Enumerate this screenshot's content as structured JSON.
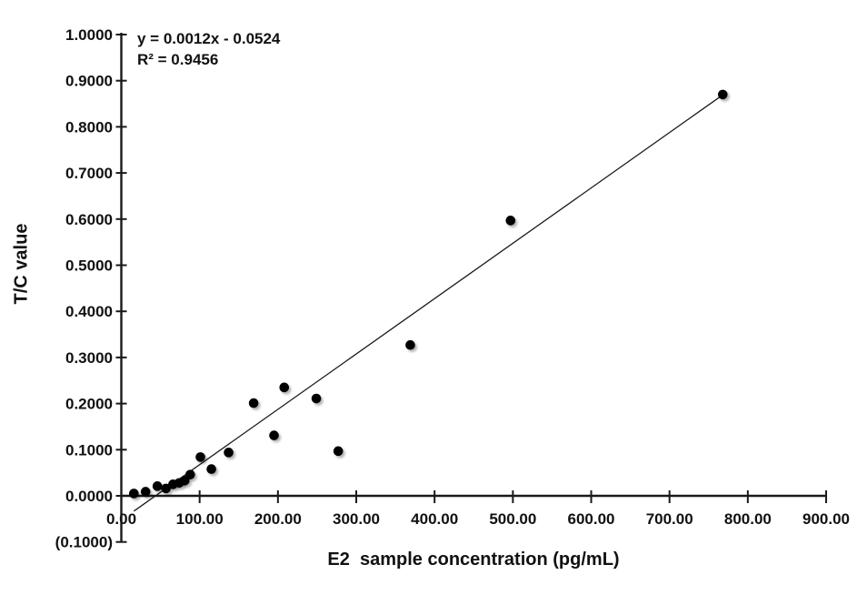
{
  "chart_data": {
    "type": "scatter",
    "title": "",
    "xlabel": "E2  sample concentration (pg/mL)",
    "ylabel": "T/C value",
    "legend": "none",
    "grid": false,
    "xlim": [
      0,
      900
    ],
    "ylim": [
      -0.1,
      1.0
    ],
    "x_axis": {
      "ticks": [
        {
          "v": 0,
          "label": "0.00"
        },
        {
          "v": 100,
          "label": "100.00"
        },
        {
          "v": 200,
          "label": "200.00"
        },
        {
          "v": 300,
          "label": "300.00"
        },
        {
          "v": 400,
          "label": "400.00"
        },
        {
          "v": 500,
          "label": "500.00"
        },
        {
          "v": 600,
          "label": "600.00"
        },
        {
          "v": 700,
          "label": "700.00"
        },
        {
          "v": 800,
          "label": "800.00"
        },
        {
          "v": 900,
          "label": "900.00"
        }
      ]
    },
    "y_axis": {
      "ticks": [
        {
          "v": -0.1,
          "label": "(0.1000)",
          "color": "#fe0000"
        },
        {
          "v": 0.0,
          "label": "0.0000"
        },
        {
          "v": 0.1,
          "label": "0.1000"
        },
        {
          "v": 0.2,
          "label": "0.2000"
        },
        {
          "v": 0.3,
          "label": "0.3000"
        },
        {
          "v": 0.4,
          "label": "0.4000"
        },
        {
          "v": 0.5,
          "label": "0.5000"
        },
        {
          "v": 0.6,
          "label": "0.6000"
        },
        {
          "v": 0.7,
          "label": "0.7000"
        },
        {
          "v": 0.8,
          "label": "0.8000"
        },
        {
          "v": 0.9,
          "label": "0.9000"
        },
        {
          "v": 1.0,
          "label": "1.0000"
        }
      ]
    },
    "points": [
      {
        "x": 16,
        "y": 0.005
      },
      {
        "x": 31,
        "y": 0.009
      },
      {
        "x": 46,
        "y": 0.021
      },
      {
        "x": 57,
        "y": 0.016
      },
      {
        "x": 66,
        "y": 0.025
      },
      {
        "x": 74,
        "y": 0.028
      },
      {
        "x": 81,
        "y": 0.033
      },
      {
        "x": 88,
        "y": 0.046
      },
      {
        "x": 101,
        "y": 0.084
      },
      {
        "x": 115,
        "y": 0.058
      },
      {
        "x": 137,
        "y": 0.094
      },
      {
        "x": 169,
        "y": 0.201
      },
      {
        "x": 195,
        "y": 0.131
      },
      {
        "x": 208,
        "y": 0.235
      },
      {
        "x": 249,
        "y": 0.211
      },
      {
        "x": 277,
        "y": 0.097
      },
      {
        "x": 369,
        "y": 0.327
      },
      {
        "x": 497,
        "y": 0.597
      },
      {
        "x": 768,
        "y": 0.87
      }
    ],
    "trendline": {
      "slope": 0.0012,
      "intercept": -0.0524,
      "x_start": 16,
      "x_end": 768,
      "equation": "y = 0.0012x - 0.0524",
      "r_squared": "R² = 0.9456"
    },
    "colors": {
      "point": "#000000",
      "trendline": "#1a1a1a",
      "axis": "#1a1a1a",
      "text": "#111111",
      "negative_tick_label": "#fe0000"
    }
  },
  "annotation": {
    "equation_line": "y = 0.0012x - 0.0524",
    "r_squared_line": "R² = 0.9456"
  }
}
